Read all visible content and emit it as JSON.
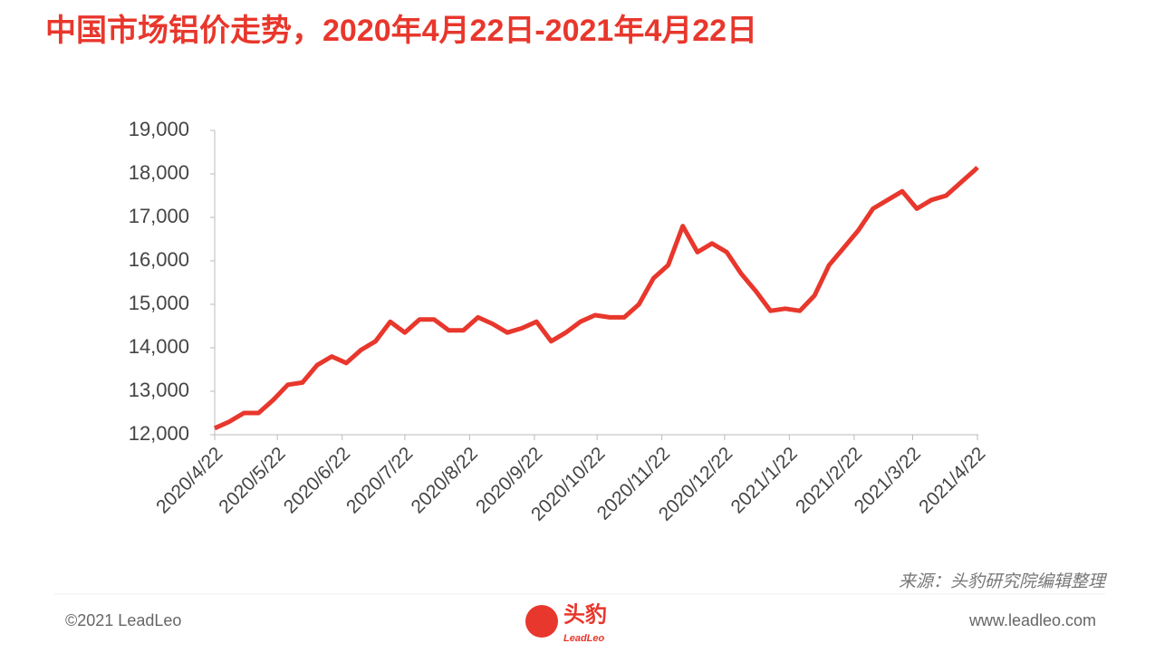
{
  "chart_data": {
    "type": "line",
    "title": "中国市场铝价走势，2020年4月22日-2021年4月22日",
    "x": [
      "2020/4/22",
      "2020/4/29",
      "2020/5/6",
      "2020/5/13",
      "2020/5/20",
      "2020/5/27",
      "2020/6/3",
      "2020/6/10",
      "2020/6/17",
      "2020/6/24",
      "2020/7/1",
      "2020/7/8",
      "2020/7/15",
      "2020/7/22",
      "2020/7/29",
      "2020/8/5",
      "2020/8/12",
      "2020/8/19",
      "2020/8/26",
      "2020/9/2",
      "2020/9/9",
      "2020/9/16",
      "2020/9/23",
      "2020/9/30",
      "2020/10/7",
      "2020/10/14",
      "2020/10/21",
      "2020/10/28",
      "2020/11/4",
      "2020/11/11",
      "2020/11/18",
      "2020/11/25",
      "2020/12/2",
      "2020/12/9",
      "2020/12/16",
      "2020/12/23",
      "2020/12/30",
      "2021/1/6",
      "2021/1/13",
      "2021/1/20",
      "2021/1/27",
      "2021/2/3",
      "2021/2/10",
      "2021/2/17",
      "2021/2/24",
      "2021/3/3",
      "2021/3/10",
      "2021/3/17",
      "2021/3/24",
      "2021/3/31",
      "2021/4/7",
      "2021/4/14",
      "2021/4/21",
      "2021/4/22"
    ],
    "values": [
      12150,
      12300,
      12500,
      12500,
      12800,
      13150,
      13200,
      13600,
      13800,
      13650,
      13950,
      14150,
      14600,
      14350,
      14650,
      14650,
      14400,
      14400,
      14700,
      14550,
      14350,
      14450,
      14600,
      14150,
      14350,
      14600,
      14750,
      14700,
      14700,
      15000,
      15600,
      15900,
      16800,
      16200,
      16400,
      16200,
      15700,
      15300,
      14850,
      14900,
      14850,
      15200,
      15900,
      16300,
      16700,
      17200,
      17400,
      17600,
      17200,
      17400,
      17500,
      17800,
      18100,
      18150
    ],
    "color": "#e8372c",
    "xlim": [
      "2020/4/22",
      "2021/4/22"
    ],
    "xticks": [
      "2020/4/22",
      "2020/5/22",
      "2020/6/22",
      "2020/7/22",
      "2020/8/22",
      "2020/9/22",
      "2020/10/22",
      "2020/11/22",
      "2020/12/22",
      "2021/1/22",
      "2021/2/22",
      "2021/3/22",
      "2021/4/22"
    ],
    "ylim": [
      12000,
      19000
    ],
    "yticks": [
      {
        "value": 12000,
        "label": "12,000"
      },
      {
        "value": 13000,
        "label": "13,000"
      },
      {
        "value": 14000,
        "label": "14,000"
      },
      {
        "value": 15000,
        "label": "15,000"
      },
      {
        "value": 16000,
        "label": "16,000"
      },
      {
        "value": 17000,
        "label": "17,000"
      },
      {
        "value": 18000,
        "label": "18,000"
      },
      {
        "value": 19000,
        "label": "19,000"
      }
    ],
    "source": "来源：头豹研究院编辑整理"
  },
  "footer": {
    "copyright": "©2021 LeadLeo",
    "logo_cn": "头豹",
    "logo_en": "LeadLeo",
    "website": "www.leadleo.com"
  }
}
